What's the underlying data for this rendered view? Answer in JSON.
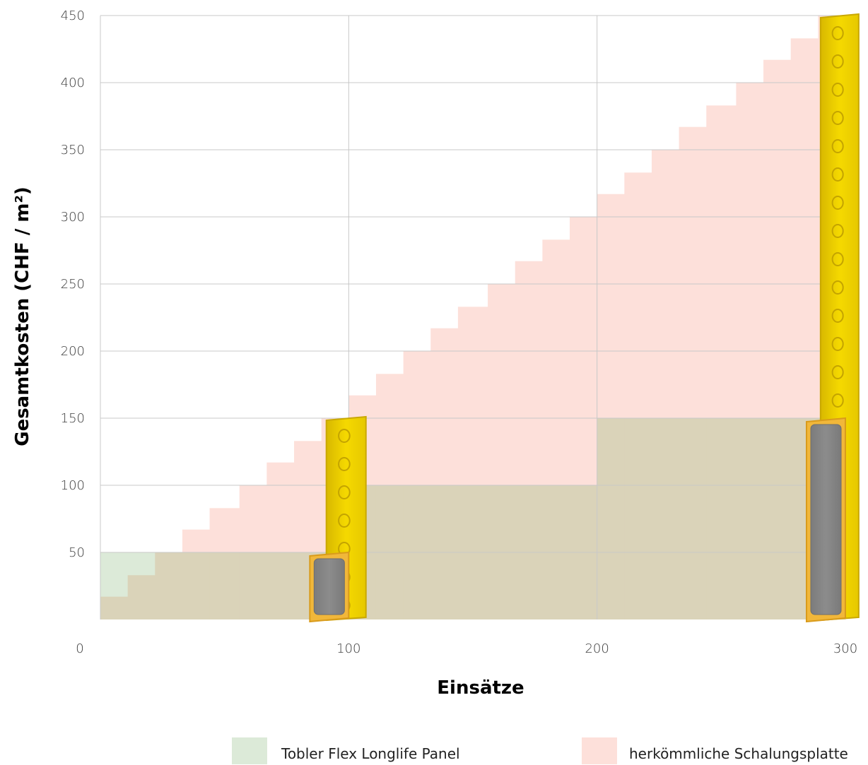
{
  "chart_data": {
    "type": "area",
    "xlabel": "Einsätze",
    "ylabel": "Gesamtkosten (CHF / m²)",
    "xlim": [
      0,
      300
    ],
    "ylim": [
      0,
      450
    ],
    "x_ticks": [
      0,
      100,
      200,
      300
    ],
    "y_ticks": [
      50,
      100,
      150,
      200,
      250,
      300,
      350,
      400,
      450
    ],
    "grid": true,
    "legend_position": "bottom",
    "series": [
      {
        "name": "Tobler Flex Longlife Panel",
        "color": "#dcead8",
        "x": [
          0,
          11,
          22,
          100,
          200,
          300
        ],
        "values": [
          50,
          50,
          50,
          100,
          150,
          150
        ]
      },
      {
        "name": "herkömmliche Schalungsplatte",
        "color": "#fde0da",
        "x": [
          0,
          11,
          22,
          33,
          44,
          56,
          67,
          78,
          89,
          100,
          111,
          122,
          133,
          144,
          156,
          167,
          178,
          189,
          200,
          211,
          222,
          233,
          244,
          256,
          267,
          278,
          289,
          300
        ],
        "values": [
          17,
          33,
          50,
          67,
          83,
          100,
          117,
          133,
          150,
          167,
          183,
          200,
          217,
          233,
          250,
          267,
          283,
          300,
          317,
          333,
          350,
          367,
          383,
          400,
          417,
          433,
          450,
          450
        ]
      }
    ],
    "overlap_color": "#dad3b9",
    "illustrations": [
      "plywood-board-icon",
      "flex-panel-icon"
    ]
  }
}
